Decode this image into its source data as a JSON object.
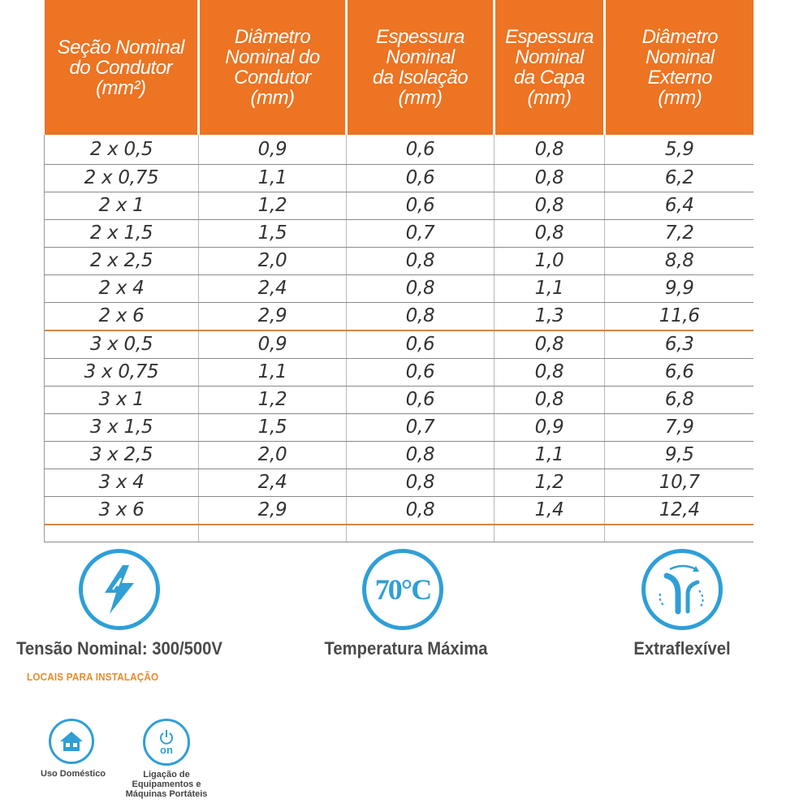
{
  "table": {
    "headers": [
      [
        "Seção Nominal",
        "do Condutor",
        "(mm²)"
      ],
      [
        "Diâmetro",
        "Nominal do",
        "Condutor",
        "(mm)"
      ],
      [
        "Espessura",
        "Nominal",
        "da Isolação",
        "(mm)"
      ],
      [
        "Espessura",
        "Nominal",
        "da Capa",
        "(mm)"
      ],
      [
        "Diâmetro",
        "Nominal",
        "Externo",
        "(mm)"
      ]
    ],
    "rows": [
      [
        "2 x 0,5",
        "0,9",
        "0,6",
        "0,8",
        "5,9"
      ],
      [
        "2 x 0,75",
        "1,1",
        "0,6",
        "0,8",
        "6,2"
      ],
      [
        "2 x 1",
        "1,2",
        "0,6",
        "0,8",
        "6,4"
      ],
      [
        "2 x 1,5",
        "1,5",
        "0,7",
        "0,8",
        "7,2"
      ],
      [
        "2 x 2,5",
        "2,0",
        "0,8",
        "1,0",
        "8,8"
      ],
      [
        "2 x 4",
        "2,4",
        "0,8",
        "1,1",
        "9,9"
      ],
      [
        "2 x 6",
        "2,9",
        "0,8",
        "1,3",
        "11,6"
      ],
      [
        "3 x 0,5",
        "0,9",
        "0,6",
        "0,8",
        "6,3"
      ],
      [
        "3 x 0,75",
        "1,1",
        "0,6",
        "0,8",
        "6,6"
      ],
      [
        "3 x 1",
        "1,2",
        "0,6",
        "0,8",
        "6,8"
      ],
      [
        "3 x 1,5",
        "1,5",
        "0,7",
        "0,9",
        "7,9"
      ],
      [
        "3 x 2,5",
        "2,0",
        "0,8",
        "1,1",
        "9,5"
      ],
      [
        "3 x 4",
        "2,4",
        "0,8",
        "1,2",
        "10,7"
      ],
      [
        "3 x 6",
        "2,9",
        "0,8",
        "1,4",
        "12,4"
      ]
    ]
  },
  "features": [
    {
      "icon": "lightning-icon",
      "label": "Tensão Nominal: 300/500V"
    },
    {
      "icon": "temperature-70c-icon",
      "badge": "70°C",
      "label": "Temperatura Máxima"
    },
    {
      "icon": "flexible-cable-icon",
      "label": "Extraflexível"
    }
  ],
  "locais": {
    "title": "LOCAIS PARA INSTALAÇÃO",
    "items": [
      {
        "icon": "house-icon",
        "label": "Uso Doméstico"
      },
      {
        "icon": "power-on-icon",
        "badge": "on",
        "label_lines": [
          "Ligação de",
          "Equipamentos e",
          "Máquinas Portáteis"
        ]
      }
    ]
  },
  "colors": {
    "header_orange": "#ec7423",
    "icon_blue": "#2f9fd6",
    "locais_orange": "#ec8a2a",
    "group_separator": "#c8894f"
  }
}
